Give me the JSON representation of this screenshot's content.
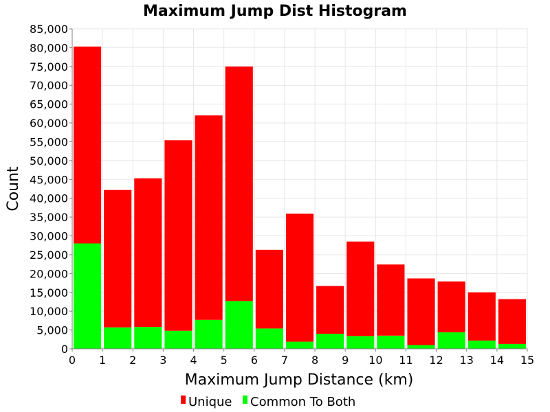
{
  "chart_data": {
    "type": "bar",
    "stacked": true,
    "title": "Maximum Jump Dist Histogram",
    "xlabel": "Maximum Jump Distance (km)",
    "ylabel": "Count",
    "xlim": [
      0,
      15
    ],
    "ylim": [
      0,
      85000
    ],
    "x_ticks": [
      "0",
      "1",
      "2",
      "3",
      "4",
      "5",
      "6",
      "7",
      "8",
      "9",
      "10",
      "11",
      "12",
      "13",
      "14",
      "15"
    ],
    "y_ticks": [
      "0",
      "5,000",
      "10,000",
      "15,000",
      "20,000",
      "25,000",
      "30,000",
      "35,000",
      "40,000",
      "45,000",
      "50,000",
      "55,000",
      "60,000",
      "65,000",
      "70,000",
      "75,000",
      "80,000",
      "85,000"
    ],
    "bin_edges": [
      0,
      1,
      2,
      3,
      4,
      5,
      6,
      7,
      8,
      9,
      10,
      11,
      12,
      13,
      14,
      15
    ],
    "totals": [
      80300,
      42200,
      45300,
      55400,
      62000,
      75000,
      26300,
      35900,
      16700,
      28500,
      22400,
      18700,
      17900,
      15000,
      13200
    ],
    "series": [
      {
        "name": "Unique",
        "color": "#ff0000",
        "values": [
          52300,
          36500,
          39500,
          50600,
          54300,
          62300,
          20900,
          34000,
          12700,
          25100,
          18900,
          17700,
          13500,
          12800,
          11900
        ]
      },
      {
        "name": "Common To Both",
        "color": "#00ff00",
        "values": [
          28000,
          5700,
          5800,
          4800,
          7700,
          12700,
          5400,
          1900,
          4000,
          3400,
          3500,
          1000,
          4400,
          2200,
          1300
        ]
      }
    ],
    "grid": true,
    "legend": "bottom"
  }
}
